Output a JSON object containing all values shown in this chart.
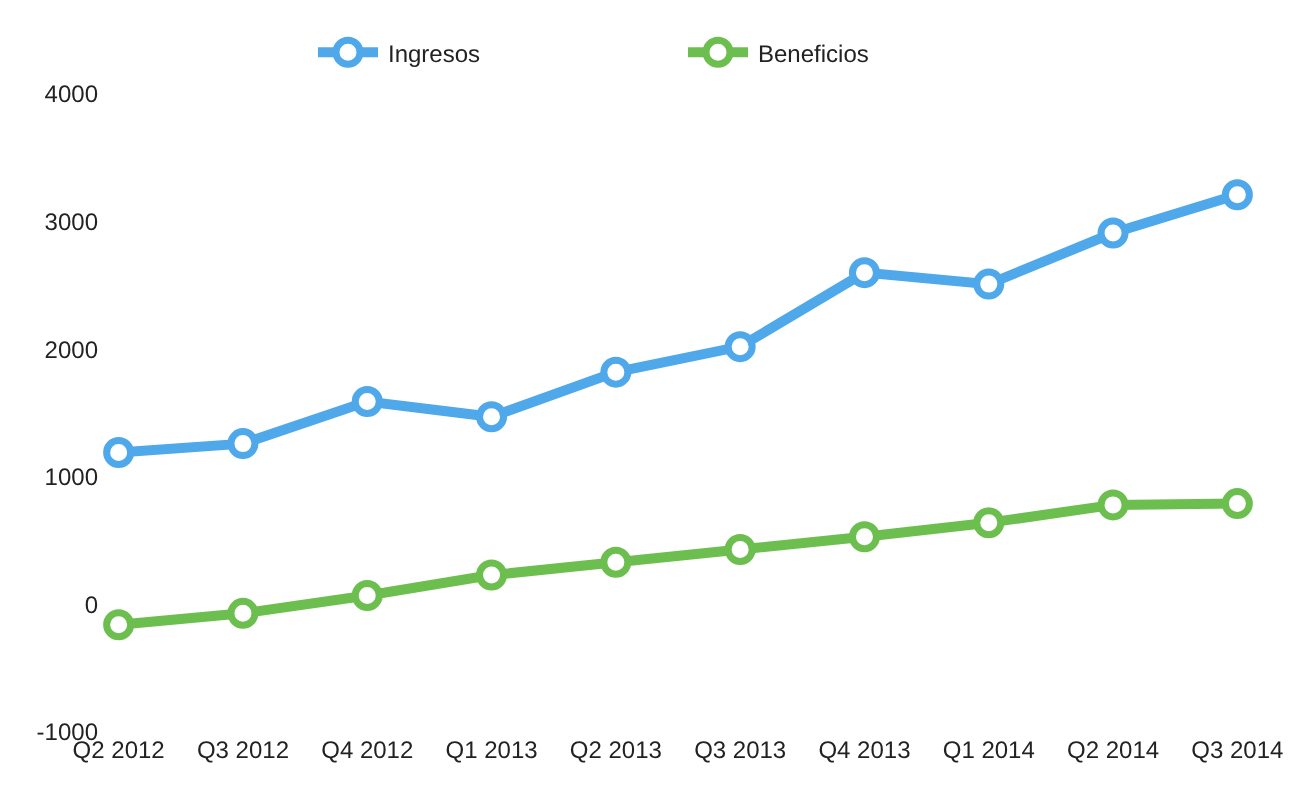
{
  "chart_data": {
    "type": "line",
    "categories": [
      "Q2 2012",
      "Q3 2012",
      "Q4 2012",
      "Q1 2013",
      "Q2 2013",
      "Q3 2013",
      "Q4 2013",
      "Q1 2014",
      "Q2 2014",
      "Q3 2014"
    ],
    "series": [
      {
        "name": "Ingresos",
        "color": "#4fa8ea",
        "values": [
          1190,
          1260,
          1590,
          1470,
          1820,
          2020,
          2600,
          2510,
          2910,
          3210
        ]
      },
      {
        "name": "Beneficios",
        "color": "#6cbf4f",
        "values": [
          -160,
          -70,
          70,
          230,
          330,
          430,
          530,
          640,
          780,
          790
        ]
      }
    ],
    "ylim": [
      -1000,
      4000
    ],
    "yticks": [
      -1000,
      0,
      1000,
      2000,
      3000,
      4000
    ],
    "legend": "top",
    "marker": "circle",
    "line_style": "solid"
  }
}
